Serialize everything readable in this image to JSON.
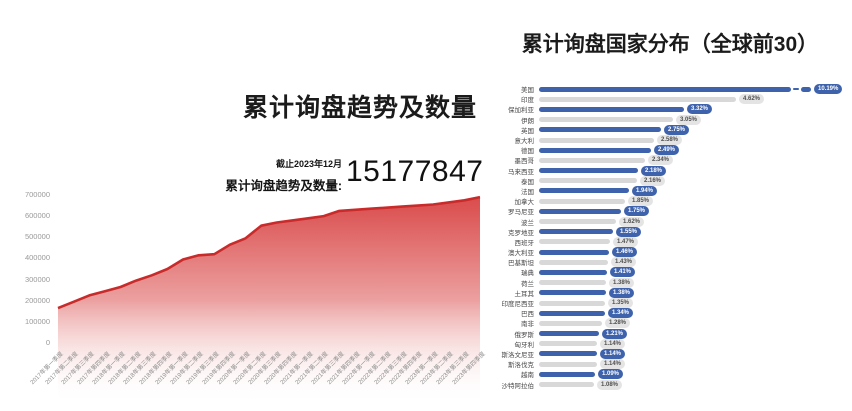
{
  "header_left": {
    "title": "累计询盘趋势及数量",
    "asof": "截止2023年12月",
    "total_label": "累计询盘趋势及数量:",
    "total_value": "15177847"
  },
  "header_right": {
    "title": "累计询盘国家分布（全球前30）"
  },
  "chart_data": [
    {
      "type": "area",
      "title": "累计询盘趋势及数量",
      "xlabel": "",
      "ylabel": "",
      "ylim": [
        0,
        700000
      ],
      "yticks": [
        0,
        100000,
        200000,
        300000,
        400000,
        500000,
        600000,
        700000
      ],
      "grid": false,
      "colors": {
        "area": "#d84040",
        "line": "#c92b2b"
      },
      "x": [
        "2017年第一季度",
        "2017年第二季度",
        "2017年第三季度",
        "2017年第四季度",
        "2018年第一季度",
        "2018年第二季度",
        "2018年第三季度",
        "2018年第四季度",
        "2019年第一季度",
        "2019年第二季度",
        "2019年第三季度",
        "2019年第四季度",
        "2020年第一季度",
        "2020年第二季度",
        "2020年第三季度",
        "2020年第四季度",
        "2021年第一季度",
        "2021年第二季度",
        "2021年第三季度",
        "2021年第四季度",
        "2022年第一季度",
        "2022年第二季度",
        "2022年第三季度",
        "2022年第四季度",
        "2023年第一季度",
        "2023年第二季度",
        "2023年第三季度",
        "2023年第四季度"
      ],
      "values": [
        165000,
        195000,
        225000,
        245000,
        265000,
        295000,
        320000,
        350000,
        395000,
        415000,
        420000,
        465000,
        495000,
        555000,
        570000,
        580000,
        590000,
        600000,
        625000,
        630000,
        635000,
        640000,
        645000,
        650000,
        655000,
        665000,
        675000,
        690000
      ]
    },
    {
      "type": "bar",
      "orientation": "horizontal",
      "title": "累计询盘国家分布（全球前30）",
      "legend_position": "none",
      "broken_bar_index": 0,
      "colors": {
        "blue": "#3e63ac",
        "gray": "#d8d8d8"
      },
      "categories": [
        "美国",
        "印度",
        "保加利亚",
        "伊朗",
        "英国",
        "意大利",
        "德国",
        "墨西哥",
        "马来西亚",
        "泰国",
        "法国",
        "加拿大",
        "罗马尼亚",
        "波兰",
        "克罗地亚",
        "西班牙",
        "澳大利亚",
        "巴基斯坦",
        "瑞典",
        "荷兰",
        "土耳其",
        "印度尼西亚",
        "巴西",
        "南非",
        "俄罗斯",
        "匈牙利",
        "斯洛文尼亚",
        "斯洛伐克",
        "越南",
        "沙特阿拉伯"
      ],
      "values": [
        10.19,
        4.62,
        3.32,
        3.05,
        2.75,
        2.58,
        2.49,
        2.34,
        2.18,
        2.16,
        1.94,
        1.85,
        1.75,
        1.62,
        1.55,
        1.47,
        1.46,
        1.43,
        1.41,
        1.38,
        1.38,
        1.35,
        1.34,
        1.28,
        1.21,
        1.14,
        1.14,
        1.14,
        1.09,
        1.08
      ],
      "labels": [
        "10.19%",
        "4.62%",
        "3.32%",
        "3.05%",
        "2.75%",
        "2.58%",
        "2.49%",
        "2.34%",
        "2.18%",
        "2.16%",
        "1.94%",
        "1.85%",
        "1.75%",
        "1.62%",
        "1.55%",
        "1.47%",
        "1.46%",
        "1.43%",
        "1.41%",
        "1.38%",
        "1.38%",
        "1.35%",
        "1.34%",
        "1.28%",
        "1.21%",
        "1.14%",
        "1.14%",
        "1.14%",
        "1.09%",
        "1.08%"
      ]
    }
  ]
}
